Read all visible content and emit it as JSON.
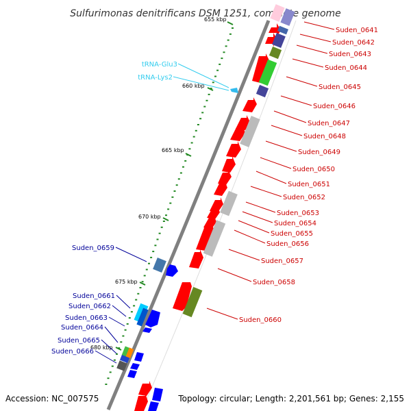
{
  "title": "Sulfurimonas denitrificans DSM 1251, complete genome",
  "accession": "Accession: NC_007575",
  "topology": "Topology: circular; Length: 2,201,561 bp; Genes: 2,155",
  "colors": {
    "forward_cds": "#ff0000",
    "reverse_cds": "#0000ff",
    "rna": "#00ccff",
    "right_label": "#cc0000",
    "left_label": "#000099",
    "trna_label": "#33ccee",
    "backbone": "#808080",
    "tick_mark": "#228822"
  },
  "ticks": [
    {
      "label": "655 kbp"
    },
    {
      "label": "660 kbp"
    },
    {
      "label": "665 kbp"
    },
    {
      "label": "670 kbp"
    },
    {
      "label": "675 kbp"
    },
    {
      "label": "680 kbp"
    }
  ],
  "trna_labels": [
    "tRNA-Glu3",
    "tRNA-Lys2"
  ],
  "right_labels": [
    "Suden_0641",
    "Suden_0642",
    "Suden_0643",
    "Suden_0644",
    "Suden_0645",
    "Suden_0646",
    "Suden_0647",
    "Suden_0648",
    "Suden_0649",
    "Suden_0650",
    "Suden_0651",
    "Suden_0652",
    "Suden_0653",
    "Suden_0654",
    "Suden_0655",
    "Suden_0656",
    "Suden_0657",
    "Suden_0658",
    "Suden_0660"
  ],
  "left_labels": [
    "Suden_0659",
    "Suden_0661",
    "Suden_0662",
    "Suden_0663",
    "Suden_0664",
    "Suden_0665",
    "Suden_0666"
  ]
}
